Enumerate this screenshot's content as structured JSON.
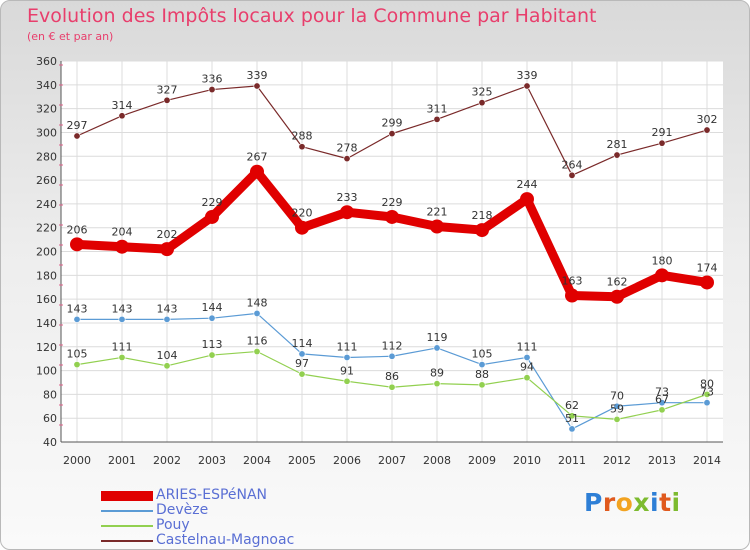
{
  "title": "Evolution des Impôts locaux pour la Commune par Habitant",
  "subtitle": "(en € et par an)",
  "logo": {
    "text": "Proxiti",
    "letters": [
      "P",
      "r",
      "o",
      "x",
      "i",
      "t",
      "i"
    ],
    "colors": [
      "#2e7fd6",
      "#e05a1e",
      "#f2a321",
      "#7dbb2f",
      "#2e7fd6",
      "#e05a1e",
      "#7dbb2f"
    ]
  },
  "chart_data": {
    "type": "line",
    "x": [
      "2000",
      "2001",
      "2002",
      "2003",
      "2004",
      "2005",
      "2006",
      "2007",
      "2008",
      "2009",
      "2010",
      "2011",
      "2012",
      "2013",
      "2014"
    ],
    "y_ticks": [
      "40",
      "60",
      "80",
      "100",
      "120",
      "140",
      "160",
      "180",
      "200",
      "220",
      "240",
      "260",
      "280",
      "300",
      "320",
      "340",
      "360"
    ],
    "ylim": [
      40,
      360
    ],
    "grid": true,
    "legend_position": "bottom-left",
    "series": [
      {
        "name": "ARIES-ESPéNAN",
        "color": "#e00000",
        "emphasis": true,
        "values": [
          206,
          204,
          202,
          229,
          267,
          220,
          233,
          229,
          221,
          218,
          244,
          163,
          162,
          180,
          174
        ],
        "labels": [
          "206",
          "204",
          "202",
          "229",
          "267",
          "220",
          "233",
          "229",
          "221",
          "218",
          "244",
          "163",
          "162",
          "180",
          "174"
        ]
      },
      {
        "name": "Devèze",
        "color": "#5b9bd5",
        "emphasis": false,
        "values": [
          143,
          143,
          143,
          144,
          148,
          114,
          111,
          112,
          119,
          105,
          111,
          51,
          70,
          73,
          73
        ],
        "labels": [
          "143",
          "143",
          "143",
          "144",
          "148",
          "114",
          "111",
          "112",
          "119",
          "105",
          "111",
          "51",
          "70",
          "73",
          "73"
        ]
      },
      {
        "name": "Pouy",
        "color": "#92d050",
        "emphasis": false,
        "values": [
          105,
          111,
          104,
          113,
          116,
          97,
          91,
          86,
          89,
          88,
          94,
          62,
          59,
          67,
          80
        ],
        "labels": [
          "105",
          "111",
          "104",
          "113",
          "116",
          "97",
          "91",
          "86",
          "89",
          "88",
          "94",
          "62",
          "59",
          "67",
          "80"
        ]
      },
      {
        "name": "Castelnau-Magnoac",
        "color": "#7a2a2a",
        "emphasis": false,
        "values": [
          297,
          314,
          327,
          336,
          339,
          288,
          278,
          299,
          311,
          325,
          339,
          264,
          281,
          291,
          302
        ],
        "labels": [
          "297",
          "314",
          "327",
          "336",
          "339",
          "288",
          "278",
          "299",
          "311",
          "325",
          "339",
          "264",
          "281",
          "291",
          "302"
        ]
      }
    ]
  }
}
